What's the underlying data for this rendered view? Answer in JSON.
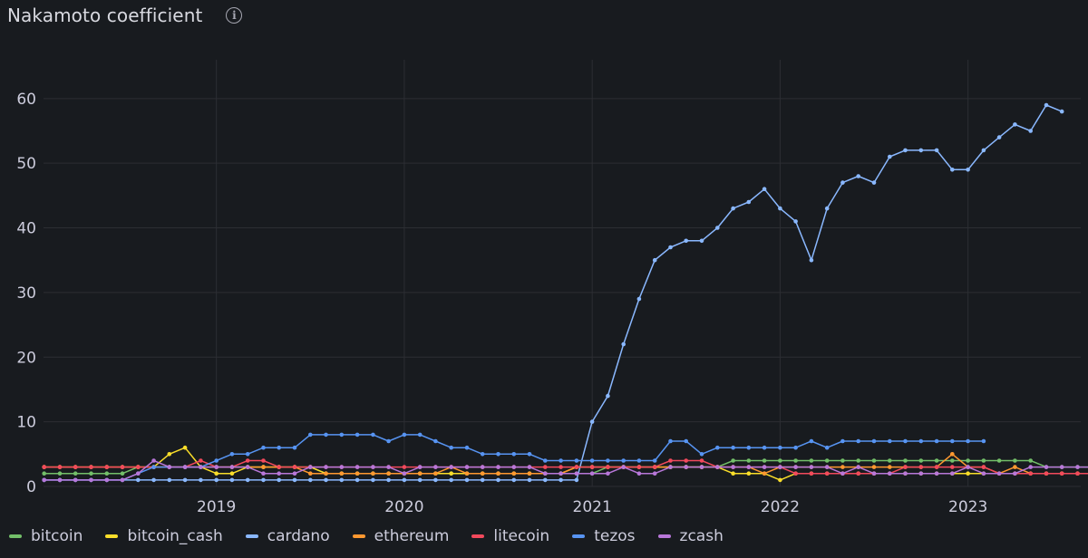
{
  "panel": {
    "title": "Nakamoto coefficient",
    "info_icon": "info-icon"
  },
  "chart_data": {
    "type": "line",
    "title": "Nakamoto coefficient",
    "xlabel": "",
    "ylabel": "",
    "ylim": [
      0,
      66
    ],
    "xlim": [
      2018.08,
      2023.6
    ],
    "yticks": [
      0,
      10,
      20,
      30,
      40,
      50,
      60
    ],
    "xticks": [
      2019,
      2020,
      2021,
      2022,
      2023
    ],
    "x_start": 2018.0833,
    "x_step": 0.08333,
    "grid": true,
    "legend_position": "bottom-left",
    "series": [
      {
        "name": "bitcoin",
        "color": "#73bf69",
        "values": [
          2,
          2,
          2,
          2,
          2,
          2,
          3,
          3,
          3,
          3,
          3,
          3,
          3,
          3,
          3,
          3,
          3,
          3,
          2,
          2,
          2,
          2,
          2,
          2,
          2,
          2,
          2,
          2,
          2,
          2,
          2,
          2,
          2,
          2,
          2,
          2,
          3,
          3,
          3,
          3,
          3,
          3,
          3,
          3,
          4,
          4,
          4,
          4,
          4,
          4,
          4,
          4,
          4,
          4,
          4,
          4,
          4,
          4,
          4,
          4,
          4,
          4,
          4,
          4,
          3,
          3,
          3,
          3,
          3,
          3,
          3,
          3,
          3,
          3,
          3,
          3,
          3,
          3,
          2,
          2,
          2,
          2,
          2,
          2
        ]
      },
      {
        "name": "bitcoin_cash",
        "color": "#fade2a",
        "values": [
          3,
          3,
          3,
          3,
          3,
          3,
          3,
          3,
          5,
          6,
          3,
          2,
          2,
          3,
          3,
          3,
          3,
          3,
          2,
          2,
          2,
          2,
          2,
          2,
          2,
          2,
          2,
          2,
          2,
          2,
          2,
          2,
          2,
          2,
          3,
          3,
          3,
          3,
          3,
          3,
          3,
          3,
          3,
          3,
          2,
          2,
          2,
          1,
          2,
          2,
          2,
          2,
          2,
          2,
          2,
          2,
          2,
          2,
          2,
          2,
          2,
          2,
          2,
          2,
          2,
          2,
          2,
          2,
          2,
          2,
          2,
          2,
          2,
          2,
          2,
          3,
          3,
          3,
          2,
          3,
          4,
          3,
          4
        ]
      },
      {
        "name": "cardano",
        "color": "#8ab8ff",
        "values": [
          1,
          1,
          1,
          1,
          1,
          1,
          1,
          1,
          1,
          1,
          1,
          1,
          1,
          1,
          1,
          1,
          1,
          1,
          1,
          1,
          1,
          1,
          1,
          1,
          1,
          1,
          1,
          1,
          1,
          1,
          1,
          1,
          1,
          1,
          1,
          10,
          14,
          22,
          29,
          35,
          37,
          38,
          38,
          40,
          43,
          44,
          46,
          43,
          41,
          35,
          43,
          47,
          48,
          47,
          51,
          52,
          52,
          52,
          49,
          49,
          52,
          54,
          56,
          55,
          59,
          58
        ]
      },
      {
        "name": "ethereum",
        "color": "#ff9830",
        "values": [
          3,
          3,
          3,
          3,
          3,
          3,
          3,
          3,
          3,
          3,
          3,
          3,
          3,
          3,
          3,
          3,
          3,
          2,
          2,
          2,
          2,
          2,
          2,
          2,
          2,
          2,
          3,
          2,
          2,
          2,
          2,
          2,
          2,
          2,
          3,
          3,
          3,
          3,
          3,
          3,
          3,
          3,
          3,
          3,
          3,
          3,
          2,
          3,
          3,
          3,
          3,
          3,
          3,
          3,
          3,
          3,
          3,
          3,
          5,
          3,
          3,
          2,
          3,
          2,
          2,
          2,
          2,
          2,
          2,
          2,
          2,
          2,
          2,
          2,
          2,
          2,
          2,
          2,
          2,
          2,
          2
        ]
      },
      {
        "name": "litecoin",
        "color": "#f2495c",
        "values": [
          3,
          3,
          3,
          3,
          3,
          3,
          3,
          3,
          3,
          3,
          4,
          3,
          3,
          4,
          4,
          3,
          3,
          3,
          3,
          3,
          3,
          3,
          3,
          3,
          3,
          3,
          3,
          3,
          3,
          3,
          3,
          3,
          3,
          3,
          3,
          3,
          3,
          3,
          3,
          3,
          4,
          4,
          4,
          3,
          3,
          3,
          3,
          3,
          2,
          2,
          2,
          2,
          2,
          2,
          2,
          3,
          3,
          3,
          3,
          3,
          3,
          2,
          2,
          2,
          2,
          2,
          2,
          2,
          2,
          2,
          2,
          2,
          2,
          2,
          2,
          2,
          2,
          2,
          2,
          2,
          2,
          2,
          2,
          2
        ]
      },
      {
        "name": "tezos",
        "color": "#5794f2",
        "values": [
          1,
          1,
          1,
          1,
          1,
          1,
          2,
          3,
          3,
          3,
          3,
          4,
          5,
          5,
          6,
          6,
          6,
          8,
          8,
          8,
          8,
          8,
          7,
          8,
          8,
          7,
          6,
          6,
          5,
          5,
          5,
          5,
          4,
          4,
          4,
          4,
          4,
          4,
          4,
          4,
          7,
          7,
          5,
          6,
          6,
          6,
          6,
          6,
          6,
          7,
          6,
          7,
          7,
          7,
          7,
          7,
          7,
          7,
          7,
          7,
          7
        ]
      },
      {
        "name": "zcash",
        "color": "#b877d9",
        "values": [
          1,
          1,
          1,
          1,
          1,
          1,
          2,
          4,
          3,
          3,
          3,
          3,
          3,
          3,
          2,
          2,
          2,
          3,
          3,
          3,
          3,
          3,
          3,
          2,
          3,
          3,
          3,
          3,
          3,
          3,
          3,
          3,
          2,
          2,
          2,
          2,
          2,
          3,
          2,
          2,
          3,
          3,
          3,
          3,
          3,
          3,
          3,
          3,
          3,
          3,
          3,
          2,
          3,
          2,
          2,
          2,
          2,
          2,
          2,
          3,
          2,
          2,
          2,
          3,
          3,
          3,
          3,
          3,
          3,
          3,
          3,
          3,
          2,
          2,
          2,
          2,
          2,
          2,
          2,
          2,
          2,
          2,
          2
        ]
      }
    ]
  }
}
